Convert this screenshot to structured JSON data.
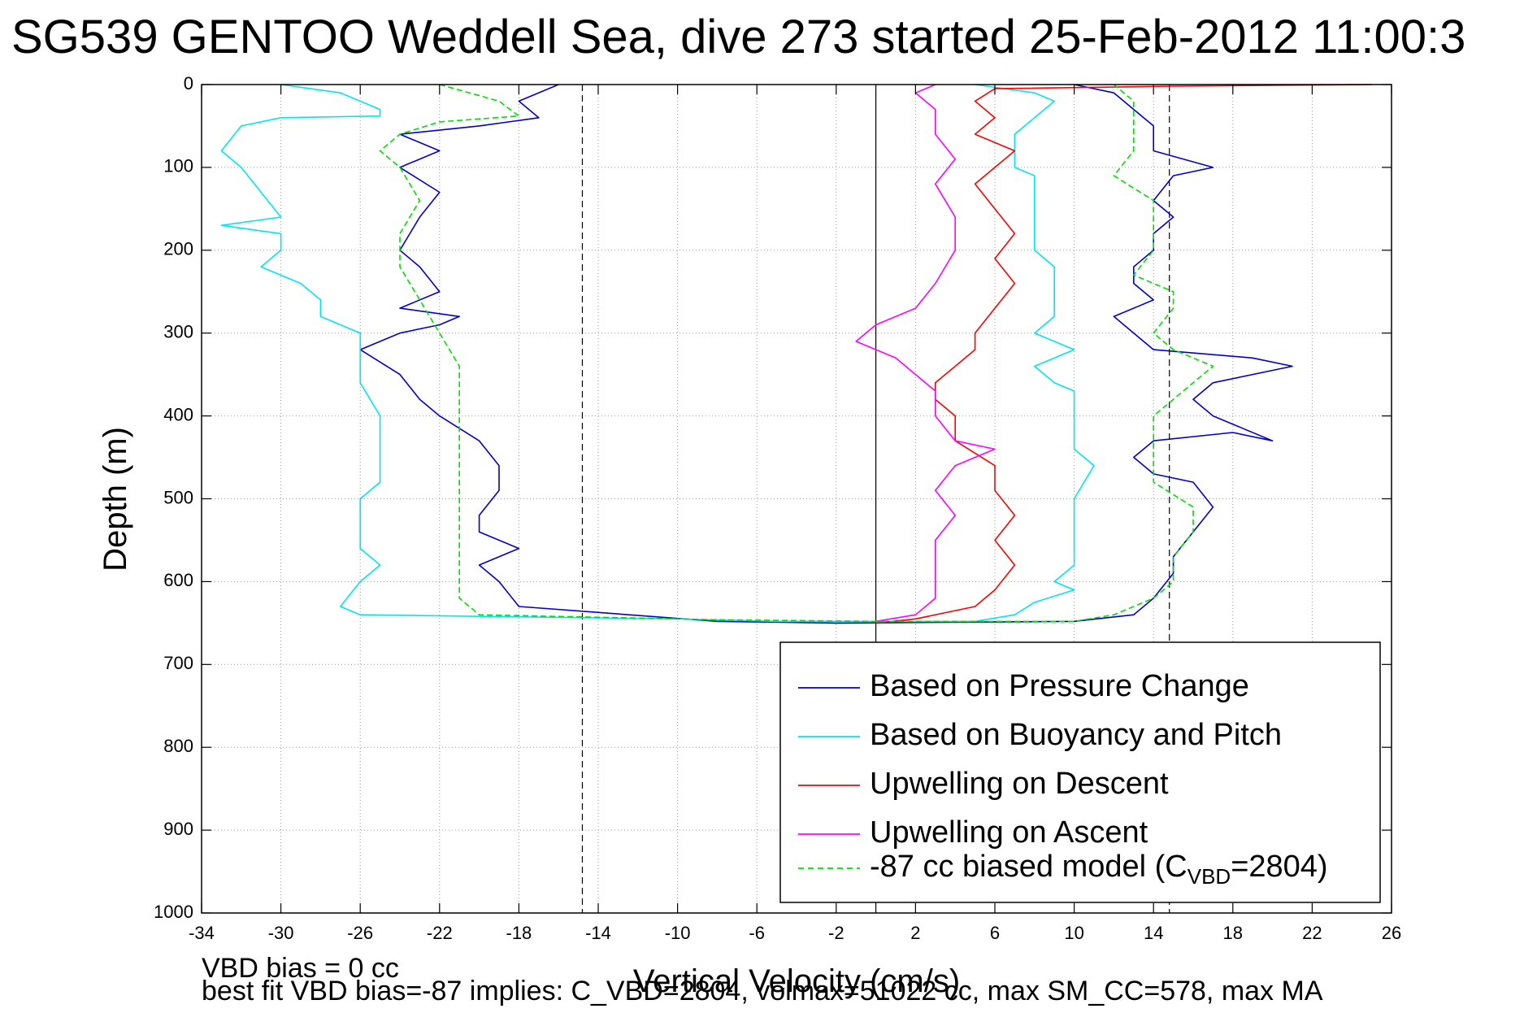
{
  "chart_data": {
    "type": "line",
    "title": "SG539 GENTOO Weddell Sea, dive 273 started 25-Feb-2012 11:00:3",
    "xlabel": "Vertical Velocity (cm/s)",
    "ylabel": "Depth (m)",
    "xlim": [
      -34,
      26
    ],
    "ylim": [
      0,
      1000
    ],
    "y_reversed": true,
    "grid": true,
    "x_ticks": [
      -34,
      -30,
      -26,
      -22,
      -18,
      -14,
      -10,
      -6,
      -2,
      2,
      6,
      10,
      14,
      18,
      22,
      26
    ],
    "y_ticks": [
      0,
      100,
      200,
      300,
      400,
      500,
      600,
      700,
      800,
      900,
      1000
    ],
    "vertical_lines": [
      {
        "x": -14.8,
        "style": "dashed"
      },
      {
        "x": 0,
        "style": "solid"
      },
      {
        "x": 14.8,
        "style": "dashed"
      }
    ],
    "legend_position": "lower-right",
    "series": [
      {
        "name": "Based on Pressure Change",
        "color": "#0000cc",
        "style": "solid",
        "points": [
          [
            -16,
            0
          ],
          [
            -18,
            20
          ],
          [
            -17,
            40
          ],
          [
            -20,
            50
          ],
          [
            -24,
            60
          ],
          [
            -22,
            80
          ],
          [
            -24,
            100
          ],
          [
            -22,
            130
          ],
          [
            -23,
            160
          ],
          [
            -24,
            200
          ],
          [
            -23,
            220
          ],
          [
            -22,
            250
          ],
          [
            -24,
            270
          ],
          [
            -21,
            280
          ],
          [
            -22,
            290
          ],
          [
            -24,
            300
          ],
          [
            -26,
            320
          ],
          [
            -24,
            350
          ],
          [
            -23,
            380
          ],
          [
            -22,
            400
          ],
          [
            -20,
            430
          ],
          [
            -19,
            460
          ],
          [
            -19,
            490
          ],
          [
            -20,
            520
          ],
          [
            -20,
            540
          ],
          [
            -18,
            560
          ],
          [
            -20,
            580
          ],
          [
            -19,
            600
          ],
          [
            -18,
            630
          ],
          [
            -8,
            648
          ],
          [
            -2,
            650
          ],
          [
            10,
            648
          ],
          [
            13,
            640
          ],
          [
            14,
            620
          ],
          [
            15,
            590
          ],
          [
            15,
            570
          ],
          [
            16,
            540
          ],
          [
            17,
            510
          ],
          [
            16,
            480
          ],
          [
            14,
            470
          ],
          [
            13,
            450
          ],
          [
            14,
            430
          ],
          [
            18,
            420
          ],
          [
            20,
            430
          ],
          [
            17,
            400
          ],
          [
            16,
            380
          ],
          [
            17,
            360
          ],
          [
            21,
            340
          ],
          [
            19,
            330
          ],
          [
            14,
            320
          ],
          [
            13,
            300
          ],
          [
            12,
            280
          ],
          [
            14,
            260
          ],
          [
            13,
            240
          ],
          [
            13,
            220
          ],
          [
            14,
            200
          ],
          [
            14,
            180
          ],
          [
            15,
            160
          ],
          [
            14,
            140
          ],
          [
            15,
            110
          ],
          [
            17,
            100
          ],
          [
            14,
            80
          ],
          [
            14,
            50
          ],
          [
            13,
            30
          ],
          [
            12,
            10
          ],
          [
            10,
            0
          ]
        ]
      },
      {
        "name": "Based on Buoyancy and Pitch",
        "color": "#00e5ee",
        "style": "solid",
        "points": [
          [
            -30,
            0
          ],
          [
            -27,
            10
          ],
          [
            -26,
            20
          ],
          [
            -25,
            30
          ],
          [
            -25,
            38
          ],
          [
            -30,
            40
          ],
          [
            -32,
            50
          ],
          [
            -33,
            80
          ],
          [
            -32,
            100
          ],
          [
            -31,
            130
          ],
          [
            -30,
            160
          ],
          [
            -33,
            170
          ],
          [
            -30,
            180
          ],
          [
            -30,
            200
          ],
          [
            -31,
            220
          ],
          [
            -29,
            240
          ],
          [
            -28,
            260
          ],
          [
            -28,
            280
          ],
          [
            -26,
            300
          ],
          [
            -26,
            330
          ],
          [
            -26,
            360
          ],
          [
            -25,
            400
          ],
          [
            -25,
            440
          ],
          [
            -25,
            480
          ],
          [
            -26,
            500
          ],
          [
            -26,
            530
          ],
          [
            -26,
            560
          ],
          [
            -25,
            580
          ],
          [
            -26,
            600
          ],
          [
            -27,
            630
          ],
          [
            -26,
            640
          ],
          [
            -10,
            645
          ],
          [
            -5,
            648
          ],
          [
            5,
            648
          ],
          [
            7,
            640
          ],
          [
            8,
            625
          ],
          [
            10,
            610
          ],
          [
            9,
            600
          ],
          [
            10,
            580
          ],
          [
            10,
            560
          ],
          [
            10,
            540
          ],
          [
            10,
            520
          ],
          [
            10,
            500
          ],
          [
            11,
            460
          ],
          [
            10,
            440
          ],
          [
            10,
            400
          ],
          [
            10,
            370
          ],
          [
            9,
            360
          ],
          [
            8,
            340
          ],
          [
            10,
            320
          ],
          [
            8,
            300
          ],
          [
            9,
            280
          ],
          [
            9,
            250
          ],
          [
            9,
            220
          ],
          [
            8,
            200
          ],
          [
            8,
            180
          ],
          [
            8,
            150
          ],
          [
            8,
            110
          ],
          [
            7,
            100
          ],
          [
            7,
            80
          ],
          [
            7,
            60
          ],
          [
            8,
            40
          ],
          [
            9,
            20
          ],
          [
            8,
            10
          ],
          [
            5,
            0
          ]
        ]
      },
      {
        "name": "Upwelling on Descent",
        "color": "#ff0000",
        "style": "solid",
        "points": [
          [
            25,
            0
          ],
          [
            15,
            2
          ],
          [
            6,
            5
          ],
          [
            5,
            20
          ],
          [
            6,
            40
          ],
          [
            5,
            60
          ],
          [
            7,
            80
          ],
          [
            6,
            100
          ],
          [
            5,
            120
          ],
          [
            6,
            150
          ],
          [
            7,
            180
          ],
          [
            6,
            210
          ],
          [
            7,
            240
          ],
          [
            6,
            270
          ],
          [
            5,
            300
          ],
          [
            5,
            320
          ],
          [
            4,
            340
          ],
          [
            3,
            360
          ],
          [
            3,
            380
          ],
          [
            4,
            400
          ],
          [
            4,
            430
          ],
          [
            6,
            460
          ],
          [
            6,
            490
          ],
          [
            7,
            520
          ],
          [
            6,
            550
          ],
          [
            7,
            580
          ],
          [
            6,
            610
          ],
          [
            5,
            630
          ],
          [
            2,
            645
          ],
          [
            0,
            650
          ]
        ]
      },
      {
        "name": "Upwelling on Ascent",
        "color": "#ff00ff",
        "style": "solid",
        "points": [
          [
            3,
            0
          ],
          [
            2,
            10
          ],
          [
            3,
            30
          ],
          [
            3,
            60
          ],
          [
            4,
            90
          ],
          [
            3,
            120
          ],
          [
            4,
            160
          ],
          [
            4,
            200
          ],
          [
            3,
            240
          ],
          [
            2,
            270
          ],
          [
            0,
            290
          ],
          [
            -1,
            310
          ],
          [
            1,
            330
          ],
          [
            2,
            350
          ],
          [
            3,
            370
          ],
          [
            3,
            400
          ],
          [
            4,
            430
          ],
          [
            6,
            440
          ],
          [
            4,
            460
          ],
          [
            3,
            490
          ],
          [
            4,
            520
          ],
          [
            3,
            550
          ],
          [
            3,
            580
          ],
          [
            3,
            600
          ],
          [
            3,
            620
          ],
          [
            2,
            640
          ],
          [
            0,
            648
          ]
        ]
      },
      {
        "name": "-87 cc biased model (C VBD=2804)",
        "color": "#00dd00",
        "style": "dashed",
        "points": [
          [
            -22,
            0
          ],
          [
            -19,
            20
          ],
          [
            -18,
            38
          ],
          [
            -22,
            45
          ],
          [
            -24,
            60
          ],
          [
            -25,
            80
          ],
          [
            -24,
            100
          ],
          [
            -23,
            140
          ],
          [
            -24,
            180
          ],
          [
            -24,
            220
          ],
          [
            -23,
            260
          ],
          [
            -22,
            300
          ],
          [
            -21,
            340
          ],
          [
            -21,
            380
          ],
          [
            -21,
            420
          ],
          [
            -21,
            460
          ],
          [
            -21,
            500
          ],
          [
            -21,
            540
          ],
          [
            -21,
            580
          ],
          [
            -21,
            620
          ],
          [
            -20,
            640
          ],
          [
            -8,
            646
          ],
          [
            0,
            648
          ],
          [
            10,
            648
          ],
          [
            12,
            640
          ],
          [
            14,
            620
          ],
          [
            15,
            600
          ],
          [
            15,
            570
          ],
          [
            16,
            540
          ],
          [
            16,
            510
          ],
          [
            14,
            480
          ],
          [
            14,
            450
          ],
          [
            14,
            400
          ],
          [
            15,
            380
          ],
          [
            16,
            360
          ],
          [
            17,
            340
          ],
          [
            15,
            320
          ],
          [
            14,
            300
          ],
          [
            15,
            270
          ],
          [
            15,
            250
          ],
          [
            13,
            230
          ],
          [
            14,
            200
          ],
          [
            14,
            170
          ],
          [
            14,
            140
          ],
          [
            12,
            110
          ],
          [
            13,
            80
          ],
          [
            13,
            50
          ],
          [
            13,
            20
          ],
          [
            12,
            0
          ]
        ]
      }
    ]
  },
  "legend_entries": [
    {
      "label": "Based on Pressure Change",
      "color": "#0000cc",
      "dash": ""
    },
    {
      "label": "Based on Buoyancy and Pitch",
      "color": "#00e5ee",
      "dash": ""
    },
    {
      "label": "Upwelling on Descent",
      "color": "#ff0000",
      "dash": ""
    },
    {
      "label": "Upwelling on Ascent",
      "color": "#ff00ff",
      "dash": ""
    }
  ],
  "legend_model": {
    "prefix": "-87 cc biased model (C",
    "subscript": "VBD",
    "suffix": "=2804)",
    "color": "#00dd00"
  },
  "footer": {
    "line1": "VBD bias = 0 cc",
    "line2": "best fit VBD bias=-87 implies: C_VBD=2804, volmax=51022 cc, max SM_CC=578, max MA"
  }
}
